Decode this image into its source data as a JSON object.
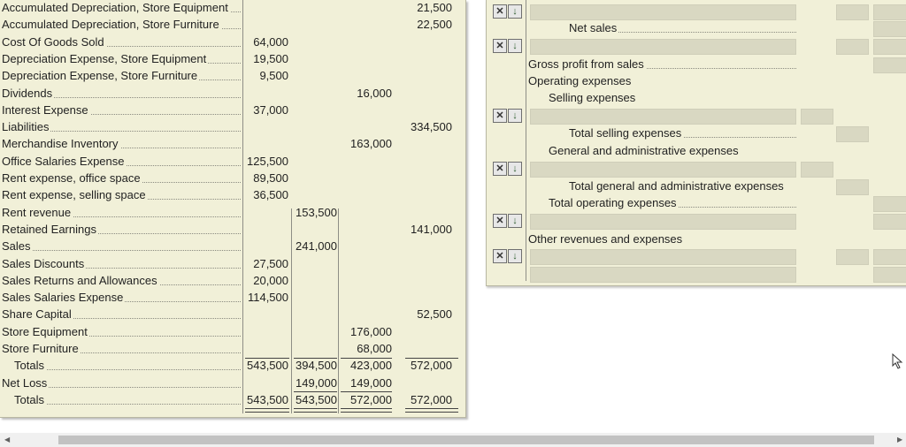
{
  "trial_balance": {
    "rows": [
      {
        "account": "Accumulated Depreciation, Store Equipment",
        "c1": "",
        "c2": "",
        "c3": "",
        "c4": "21,500",
        "indent": false
      },
      {
        "account": "Accumulated Depreciation, Store Furniture",
        "c1": "",
        "c2": "",
        "c3": "",
        "c4": "22,500",
        "indent": false
      },
      {
        "account": "Cost Of Goods Sold",
        "c1": "64,000",
        "c2": "",
        "c3": "",
        "c4": "",
        "indent": false
      },
      {
        "account": "Depreciation Expense, Store Equipment",
        "c1": "19,500",
        "c2": "",
        "c3": "",
        "c4": "",
        "indent": false
      },
      {
        "account": "Depreciation Expense, Store Furniture",
        "c1": "9,500",
        "c2": "",
        "c3": "",
        "c4": "",
        "indent": false
      },
      {
        "account": "Dividends",
        "c1": "",
        "c2": "",
        "c3": "16,000",
        "c4": "",
        "indent": false
      },
      {
        "account": "Interest Expense",
        "c1": "37,000",
        "c2": "",
        "c3": "",
        "c4": "",
        "indent": false
      },
      {
        "account": "Liabilities",
        "c1": "",
        "c2": "",
        "c3": "",
        "c4": "334,500",
        "indent": false
      },
      {
        "account": "Merchandise Inventory",
        "c1": "",
        "c2": "",
        "c3": "163,000",
        "c4": "",
        "indent": false
      },
      {
        "account": "Office Salaries Expense",
        "c1": "125,500",
        "c2": "",
        "c3": "",
        "c4": "",
        "indent": false
      },
      {
        "account": "Rent expense, office space",
        "c1": "89,500",
        "c2": "",
        "c3": "",
        "c4": "",
        "indent": false
      },
      {
        "account": "Rent expense, selling space",
        "c1": "36,500",
        "c2": "",
        "c3": "",
        "c4": "",
        "indent": false
      },
      {
        "account": "Rent revenue",
        "c1": "",
        "c2": "153,500",
        "c3": "",
        "c4": "",
        "indent": false
      },
      {
        "account": "Retained Earnings",
        "c1": "",
        "c2": "",
        "c3": "",
        "c4": "141,000",
        "indent": false
      },
      {
        "account": "Sales",
        "c1": "",
        "c2": "241,000",
        "c3": "",
        "c4": "",
        "indent": false
      },
      {
        "account": "Sales Discounts",
        "c1": "27,500",
        "c2": "",
        "c3": "",
        "c4": "",
        "indent": false
      },
      {
        "account": "Sales Returns and Allowances",
        "c1": "20,000",
        "c2": "",
        "c3": "",
        "c4": "",
        "indent": false
      },
      {
        "account": "Sales Salaries Expense",
        "c1": "114,500",
        "c2": "",
        "c3": "",
        "c4": "",
        "indent": false
      },
      {
        "account": "Share Capital",
        "c1": "",
        "c2": "",
        "c3": "",
        "c4": "52,500",
        "indent": false
      },
      {
        "account": "Store Equipment",
        "c1": "",
        "c2": "",
        "c3": "176,000",
        "c4": "",
        "indent": false
      },
      {
        "account": "Store Furniture",
        "c1": "",
        "c2": "",
        "c3": "68,000",
        "c4": "",
        "indent": false
      },
      {
        "account": "Totals",
        "c1": "543,500",
        "c2": "394,500",
        "c3": "423,000",
        "c4": "572,000",
        "indent": true
      },
      {
        "account": "Net Loss",
        "c1": "",
        "c2": "149,000",
        "c3": "149,000",
        "c4": "",
        "indent": false
      },
      {
        "account": "Totals",
        "c1": "543,500",
        "c2": "543,500",
        "c3": "572,000",
        "c4": "572,000",
        "indent": true
      }
    ]
  },
  "income_statement": {
    "lines": [
      {
        "label": "",
        "indent": 0,
        "dotted": false,
        "ctrl": true,
        "fields": [
          "c1",
          "c2",
          "c3"
        ]
      },
      {
        "label": "Net sales",
        "indent": 2,
        "dotted": true,
        "ctrl": false,
        "fields": [
          "c3"
        ]
      },
      {
        "label": "",
        "indent": 0,
        "dotted": false,
        "ctrl": true,
        "fields": [
          "c1",
          "c3"
        ]
      },
      {
        "label": "Gross profit from sales",
        "indent": 0,
        "dotted": true,
        "ctrl": false,
        "fields": [
          "c3"
        ]
      },
      {
        "label": "Operating expenses",
        "indent": 0,
        "dotted": false,
        "ctrl": false,
        "fields": []
      },
      {
        "label": "Selling expenses",
        "indent": 1,
        "dotted": false,
        "ctrl": false,
        "fields": []
      },
      {
        "label": "",
        "indent": 0,
        "dotted": false,
        "ctrl": true,
        "fields": [
          "c0"
        ]
      },
      {
        "label": "Total selling expenses",
        "indent": 2,
        "dotted": true,
        "ctrl": false,
        "fields": [
          "c1"
        ]
      },
      {
        "label": "General and administrative expenses",
        "indent": 1,
        "dotted": false,
        "ctrl": false,
        "fields": []
      },
      {
        "label": "",
        "indent": 0,
        "dotted": false,
        "ctrl": true,
        "fields": [
          "c0"
        ]
      },
      {
        "label": "Total general and administrative expenses",
        "indent": 2,
        "dotted": false,
        "ctrl": false,
        "fields": [
          "c1"
        ]
      },
      {
        "label": "Total operating expenses",
        "indent": 1,
        "dotted": true,
        "ctrl": false,
        "fields": [
          "c3"
        ]
      },
      {
        "label": "",
        "indent": 0,
        "dotted": false,
        "ctrl": true,
        "fields": [
          "c3"
        ]
      },
      {
        "label": "Other revenues and expenses",
        "indent": 0,
        "dotted": false,
        "ctrl": false,
        "fields": []
      },
      {
        "label": "",
        "indent": 0,
        "dotted": false,
        "ctrl": true,
        "fields": [
          "c1",
          "c3"
        ]
      },
      {
        "label": "",
        "indent": 0,
        "dotted": false,
        "ctrl": false,
        "fields": [
          "c3"
        ]
      }
    ],
    "ctrl_labels": {
      "remove": "✕",
      "move_down": "↓"
    }
  }
}
